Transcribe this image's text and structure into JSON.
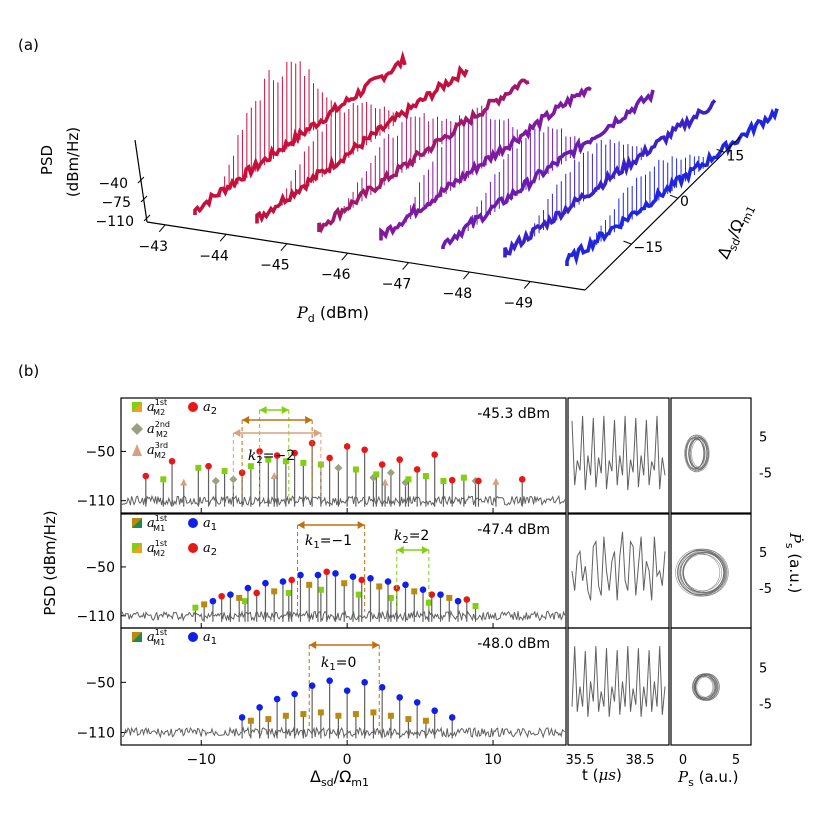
{
  "chart_data": [
    {
      "panel": "(a)",
      "type": "waterfall-3d",
      "zlabel_line1": "PSD",
      "zlabel_line2": "(dBm/Hz)",
      "z_ticks": [
        "−40",
        "−75",
        "−110"
      ],
      "x_label": "P",
      "x_label_sub": "d",
      "x_label_unit": " (dBm)",
      "x_ticks": [
        "−43",
        "−44",
        "−45",
        "−46",
        "−47",
        "−48",
        "−49"
      ],
      "y_label": "Δ",
      "y_label_sub": "sd",
      "y_label_mid": "/Ω",
      "y_label_sub2": "m1",
      "y_ticks": [
        "15",
        "0",
        "−15"
      ],
      "traces": [
        {
          "pd": -43.0,
          "color": "#c8103c",
          "peak_envelope": [
            0.9,
            0.6
          ]
        },
        {
          "pd": -44.0,
          "color": "#c0103e",
          "peak_envelope": [
            0.55,
            0.5
          ]
        },
        {
          "pd": -45.0,
          "color": "#a0186c",
          "peak_envelope": [
            0.45,
            0.4
          ]
        },
        {
          "pd": -46.0,
          "color": "#8018a0",
          "peak_envelope": [
            0.65,
            0.2
          ]
        },
        {
          "pd": -47.0,
          "color": "#6a1cb0",
          "peak_envelope": [
            0.5,
            0.2
          ]
        },
        {
          "pd": -48.0,
          "color": "#3a22c8",
          "peak_envelope": [
            0.45,
            0.1
          ]
        },
        {
          "pd": -49.0,
          "color": "#2026e0",
          "peak_envelope": [
            0.35,
            0.05
          ]
        }
      ]
    },
    {
      "panel": "(b)",
      "type": "stem",
      "ylabel": "PSD (dBm/Hz)",
      "xlabel": "Δ",
      "xlabel_sub": "sd",
      "xlabel_mid": "/Ω",
      "xlabel_sub2": "m1",
      "x_ticks": [
        "−10",
        "0",
        "10"
      ],
      "x_tick_values": [
        -10,
        0,
        10
      ],
      "xlim": [
        -15.5,
        15
      ],
      "y_ticks": [
        "−50",
        "−110"
      ],
      "y_tick_values": [
        -50,
        -110
      ],
      "ylim": [
        -125,
        15
      ],
      "noise_floor": -110,
      "colors": {
        "a1": "#1020e8",
        "a2": "#e81818",
        "m1": "#b88a10",
        "m1b": "#208848",
        "m2": "#80d010",
        "m2b": "#f0a020",
        "m2nd": "#9aa080",
        "m3rd": "#d8a080",
        "trace": "#606060",
        "k_arrow": "#c07010"
      },
      "rows": [
        {
          "power_label": "-45.3 dBm",
          "legend": [
            {
              "sym": "a",
              "sup": "1st",
              "sub": "M2",
              "kind": "m2"
            },
            {
              "sym": "a",
              "sup": "",
              "sub": "2",
              "kind": "a2"
            },
            {
              "sym": "a",
              "sup": "2nd",
              "sub": "M2",
              "kind": "m2nd"
            },
            {
              "sym": "a",
              "sup": "3rd",
              "sub": "M2",
              "kind": "m3rd"
            }
          ],
          "k_label": "k",
          "k_sub": "2",
          "k_val": "=−2",
          "a2": [
            [
              -13.8,
              -80
            ],
            [
              -12.0,
              -62
            ],
            [
              -9.5,
              -68
            ],
            [
              -7.2,
              -76
            ],
            [
              -6.0,
              -50
            ],
            [
              -4.8,
              -55
            ],
            [
              -3.6,
              -52
            ],
            [
              -2.4,
              -40
            ],
            [
              -1.2,
              -58
            ],
            [
              0.0,
              -44
            ],
            [
              1.2,
              -48
            ],
            [
              2.4,
              -66
            ],
            [
              3.6,
              -60
            ],
            [
              4.8,
              -72
            ],
            [
              6.0,
              -54
            ],
            [
              7.2,
              -85
            ],
            [
              9.0,
              -86
            ],
            [
              12.0,
              -84
            ]
          ],
          "m2": [
            [
              -12.6,
              -84
            ],
            [
              -10.2,
              -70
            ],
            [
              -8.4,
              -74
            ],
            [
              -6.6,
              -68
            ],
            [
              -5.4,
              -60
            ],
            [
              -4.2,
              -62
            ],
            [
              -3.0,
              -64
            ],
            [
              -1.8,
              -66
            ],
            [
              0.6,
              -72
            ],
            [
              2.0,
              -78
            ],
            [
              4.2,
              -84
            ],
            [
              5.4,
              -80
            ],
            [
              6.6,
              -86
            ],
            [
              8.0,
              -82
            ]
          ],
          "m2nd": [
            [
              -9.0,
              -86
            ],
            [
              -7.8,
              -84
            ],
            [
              -0.6,
              -70
            ],
            [
              1.8,
              -82
            ],
            [
              3.0,
              -76
            ],
            [
              4.0,
              -88
            ],
            [
              8.8,
              -86
            ]
          ],
          "m3rd": [
            [
              -11.2,
              -88
            ],
            [
              -5.0,
              -80
            ],
            [
              2.6,
              -88
            ],
            [
              10.2,
              -87
            ]
          ],
          "time_series": [
            0.85,
            0.2,
            0.45,
            0.35,
            0.9,
            0.15,
            0.5,
            0.3,
            0.88,
            0.18,
            0.48,
            0.32,
            0.9,
            0.16,
            0.45,
            0.34,
            0.86,
            0.2,
            0.5,
            0.3,
            0.9,
            0.15,
            0.46,
            0.33,
            0.88,
            0.18,
            0.5,
            0.3,
            0.86,
            0.2,
            0.44,
            0.35,
            0.9,
            0.16,
            0.48,
            0.3
          ],
          "phase_center": [
            -2.2,
            0.8
          ],
          "phase_radius": [
            1.8,
            2.8
          ]
        },
        {
          "power_label": "-47.4 dBm",
          "legend": [
            {
              "sym": "a",
              "sup": "1st",
              "sub": "M1",
              "kind": "m1"
            },
            {
              "sym": "a",
              "sup": "",
              "sub": "1",
              "kind": "a1"
            },
            {
              "sym": "a",
              "sup": "1st",
              "sub": "M2",
              "kind": "m2"
            },
            {
              "sym": "a",
              "sup": "",
              "sub": "2",
              "kind": "a2"
            }
          ],
          "k1_label": "k",
          "k1_sub": "1",
          "k1_val": "=−1",
          "k2_label": "k",
          "k2_sub": "2",
          "k2_val": "=2",
          "a1": [
            [
              -9.2,
              -92
            ],
            [
              -8.0,
              -84
            ],
            [
              -6.8,
              -76
            ],
            [
              -5.6,
              -70
            ],
            [
              -4.4,
              -68
            ],
            [
              -3.2,
              -60
            ],
            [
              -2.0,
              -60
            ],
            [
              -0.8,
              -58
            ],
            [
              0.4,
              -62
            ],
            [
              1.6,
              -64
            ],
            [
              2.8,
              -68
            ],
            [
              4.0,
              -72
            ],
            [
              5.2,
              -78
            ],
            [
              6.4,
              -84
            ],
            [
              7.6,
              -92
            ]
          ],
          "a2": [
            [
              -8.6,
              -86
            ],
            [
              -6.2,
              -82
            ],
            [
              -3.8,
              -66
            ],
            [
              -1.4,
              -56
            ],
            [
              1.0,
              -66
            ],
            [
              3.4,
              -76
            ],
            [
              5.8,
              -84
            ],
            [
              8.2,
              -90
            ]
          ],
          "m1": [
            [
              -9.8,
              -96
            ],
            [
              -7.4,
              -88
            ],
            [
              -5.0,
              -80
            ],
            [
              -2.6,
              -72
            ],
            [
              -0.2,
              -70
            ],
            [
              2.2,
              -74
            ],
            [
              4.6,
              -80
            ],
            [
              7.0,
              -88
            ]
          ],
          "m2": [
            [
              -10.4,
              -100
            ],
            [
              -7.0,
              -92
            ],
            [
              -4.0,
              -82
            ],
            [
              -1.8,
              -78
            ],
            [
              0.8,
              -84
            ],
            [
              3.0,
              -88
            ],
            [
              5.6,
              -94
            ],
            [
              8.8,
              -98
            ]
          ],
          "time_series": [
            0.5,
            0.3,
            0.65,
            0.7,
            0.4,
            0.55,
            0.3,
            0.2,
            0.75,
            0.8,
            0.35,
            0.25,
            0.85,
            0.5,
            0.3,
            0.6,
            0.7,
            0.2,
            0.65,
            0.9,
            0.4,
            0.3,
            0.8,
            0.75,
            0.25,
            0.55,
            0.85,
            0.3,
            0.6,
            0.5,
            0.2,
            0.85,
            0.45,
            0.5,
            0.35,
            0.7
          ],
          "phase_center": [
            -0.6,
            -0.6
          ],
          "phase_radius": [
            4.2,
            3.6
          ]
        },
        {
          "power_label": "-48.0 dBm",
          "legend": [
            {
              "sym": "a",
              "sup": "1st",
              "sub": "M1",
              "kind": "m1"
            },
            {
              "sym": "a",
              "sup": "",
              "sub": "1",
              "kind": "a1"
            }
          ],
          "k_label": "k",
          "k_sub": "1",
          "k_val": "=0",
          "a1": [
            [
              -7.2,
              -92
            ],
            [
              -6.0,
              -80
            ],
            [
              -4.8,
              -70
            ],
            [
              -3.6,
              -64
            ],
            [
              -2.4,
              -54
            ],
            [
              -1.2,
              -48
            ],
            [
              0.0,
              -60
            ],
            [
              1.2,
              -50
            ],
            [
              2.4,
              -56
            ],
            [
              3.6,
              -68
            ],
            [
              4.8,
              -74
            ],
            [
              6.0,
              -84
            ],
            [
              7.2,
              -92
            ]
          ],
          "m1": [
            [
              -6.6,
              -96
            ],
            [
              -5.4,
              -94
            ],
            [
              -4.2,
              -90
            ],
            [
              -3.0,
              -88
            ],
            [
              -1.8,
              -86
            ],
            [
              -0.6,
              -90
            ],
            [
              0.6,
              -88
            ],
            [
              1.8,
              -86
            ],
            [
              3.0,
              -90
            ],
            [
              4.2,
              -94
            ],
            [
              5.4,
              -96
            ]
          ],
          "time_series": [
            0.3,
            0.9,
            0.25,
            0.5,
            0.3,
            0.85,
            0.2,
            0.55,
            0.35,
            0.9,
            0.25,
            0.45,
            0.3,
            0.88,
            0.2,
            0.5,
            0.35,
            0.86,
            0.22,
            0.55,
            0.3,
            0.9,
            0.25,
            0.48,
            0.32,
            0.88,
            0.2,
            0.5,
            0.3,
            0.86,
            0.25,
            0.55,
            0.3,
            0.9,
            0.22,
            0.5
          ],
          "phase_center": [
            0.6,
            -0.2
          ],
          "phase_radius": [
            2.0,
            2.0
          ]
        }
      ],
      "time_panel": {
        "xlabel": "t (",
        "xlabel_unit": "μs",
        "xlabel_end": ")",
        "x_ticks": [
          "35.5",
          "38.5"
        ]
      },
      "phase_panel": {
        "xlabel": "P",
        "xlabel_sub": "s",
        "xlabel_unit": " (a.u.)",
        "ylabel": "Ṗ",
        "ylabel_sub": "s",
        "ylabel_unit": " (a.u.)",
        "x_ticks": [
          "0",
          "5"
        ],
        "y_ticks": [
          "5",
          "-5"
        ]
      }
    }
  ],
  "labels": {
    "panel_a": "(a)",
    "panel_b": "(b)"
  }
}
